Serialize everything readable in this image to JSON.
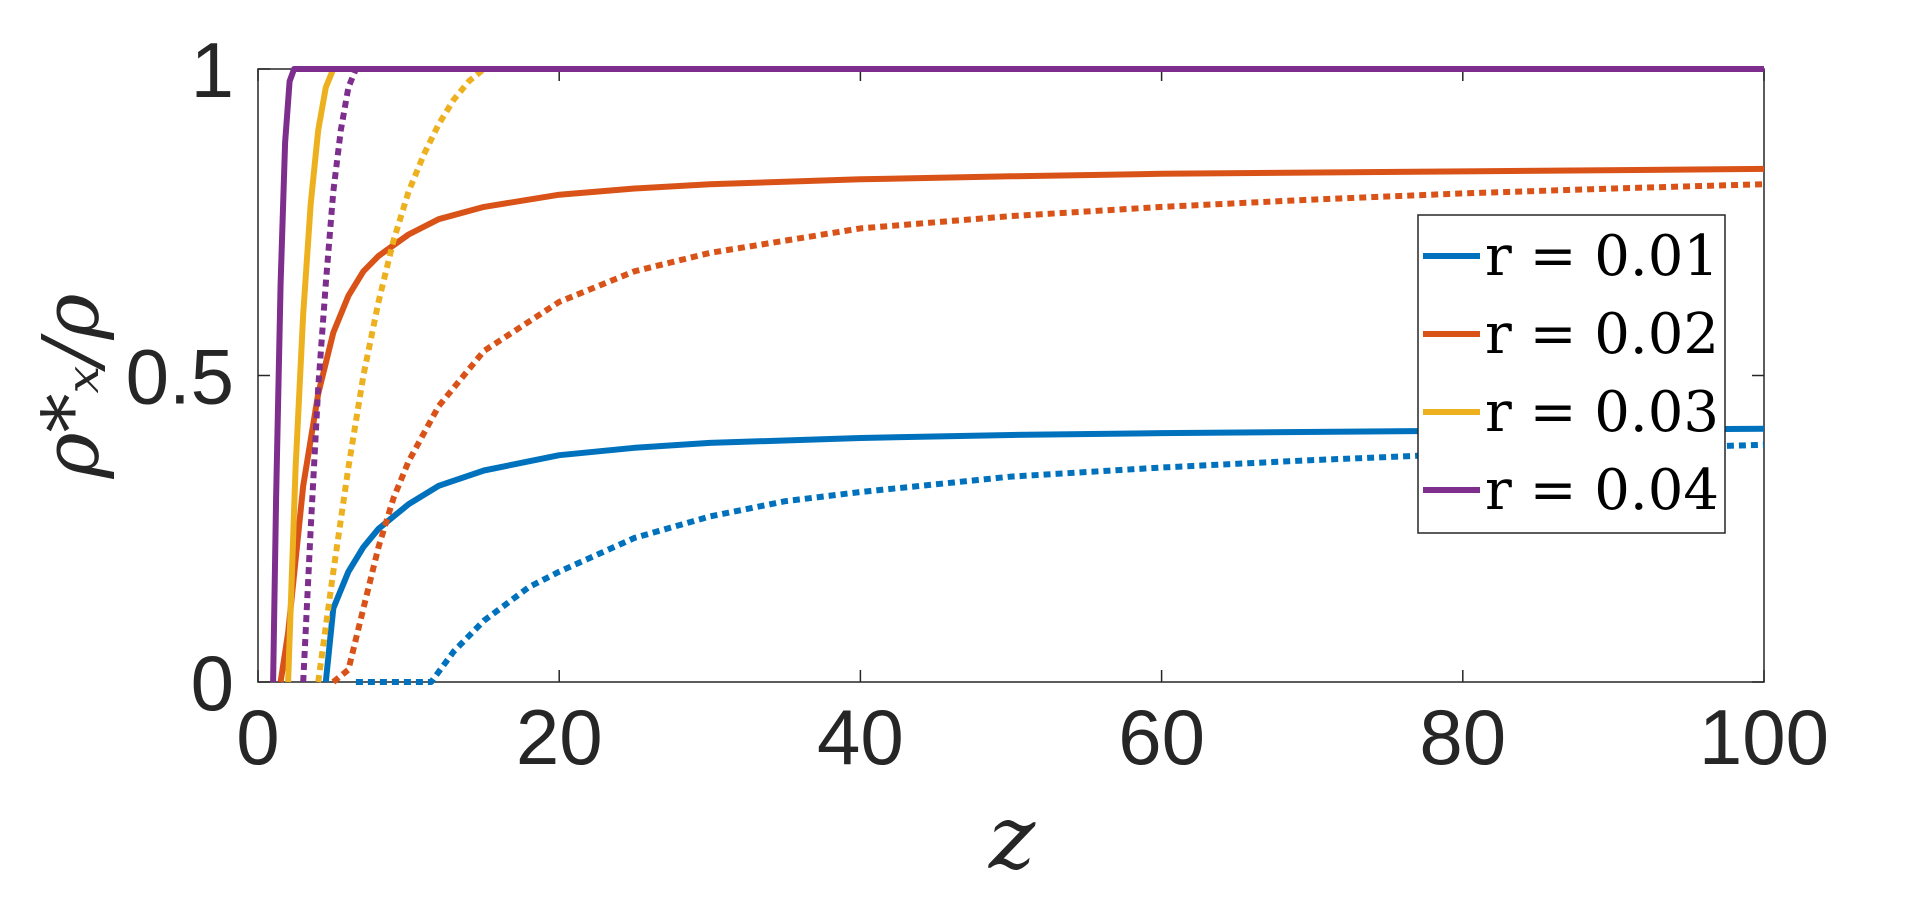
{
  "chart_data": {
    "type": "line",
    "xlabel": "z",
    "ylabel": "ρ*ₓ/ρ",
    "xlim": [
      0,
      100
    ],
    "ylim": [
      0,
      1
    ],
    "xticks": [
      "0",
      "20",
      "40",
      "60",
      "80",
      "100"
    ],
    "yticks": [
      "0",
      "0.5",
      "1"
    ],
    "grid": false,
    "legend_position": "right",
    "series": [
      {
        "name": "r = 0.01",
        "style": "solid",
        "color": "#0072BD",
        "x": [
          4.5,
          5,
          6,
          7,
          8,
          10,
          12,
          15,
          20,
          25,
          30,
          40,
          50,
          60,
          80,
          100
        ],
        "y": [
          0,
          0.12,
          0.18,
          0.22,
          0.25,
          0.29,
          0.32,
          0.345,
          0.37,
          0.382,
          0.39,
          0.398,
          0.403,
          0.406,
          0.41,
          0.413
        ]
      },
      {
        "name": "r = 0.01 (dotted)",
        "style": "dotted",
        "color": "#0072BD",
        "x": [
          6.5,
          8,
          10,
          11.5,
          13,
          15,
          18,
          20,
          25,
          30,
          35,
          40,
          50,
          60,
          70,
          80,
          90,
          100
        ],
        "y": [
          0,
          0,
          0,
          0,
          0.05,
          0.1,
          0.155,
          0.18,
          0.235,
          0.27,
          0.295,
          0.31,
          0.335,
          0.35,
          0.362,
          0.372,
          0.38,
          0.387
        ]
      },
      {
        "name": "r = 0.02",
        "style": "solid",
        "color": "#D95319",
        "x": [
          1.5,
          2,
          3,
          4,
          5,
          6,
          7,
          8,
          10,
          12,
          15,
          20,
          25,
          30,
          40,
          50,
          60,
          80,
          100
        ],
        "y": [
          0,
          0.08,
          0.32,
          0.47,
          0.57,
          0.63,
          0.67,
          0.695,
          0.73,
          0.755,
          0.775,
          0.795,
          0.805,
          0.812,
          0.82,
          0.825,
          0.829,
          0.833,
          0.837
        ]
      },
      {
        "name": "r = 0.02 (dotted)",
        "style": "dotted",
        "color": "#D95319",
        "x": [
          5,
          6,
          7,
          8,
          9,
          10,
          12,
          15,
          20,
          25,
          30,
          40,
          50,
          60,
          70,
          80,
          90,
          100
        ],
        "y": [
          0,
          0.02,
          0.12,
          0.22,
          0.3,
          0.36,
          0.45,
          0.54,
          0.62,
          0.67,
          0.7,
          0.74,
          0.76,
          0.775,
          0.787,
          0.797,
          0.805,
          0.812
        ]
      },
      {
        "name": "r = 0.03",
        "style": "solid",
        "color": "#EDB120",
        "x": [
          2,
          2.5,
          3,
          3.5,
          4,
          4.5,
          5
        ],
        "y": [
          0,
          0.35,
          0.6,
          0.78,
          0.9,
          0.97,
          1
        ]
      },
      {
        "name": "r = 0.03 (dotted)",
        "style": "dotted",
        "color": "#EDB120",
        "x": [
          4,
          5,
          6,
          7,
          8,
          9,
          10,
          11,
          12,
          13,
          14,
          15
        ],
        "y": [
          0,
          0.18,
          0.35,
          0.5,
          0.62,
          0.72,
          0.8,
          0.86,
          0.91,
          0.95,
          0.98,
          1
        ]
      },
      {
        "name": "r = 0.04",
        "style": "solid",
        "color": "#7E2F8E",
        "x": [
          1,
          1.2,
          1.5,
          1.8,
          2.1,
          2.4
        ],
        "y": [
          0,
          0.3,
          0.65,
          0.88,
          0.98,
          1
        ]
      },
      {
        "name": "r = 0.04 (dotted)",
        "style": "dotted",
        "color": "#7E2F8E",
        "x": [
          3,
          3.5,
          4,
          4.5,
          5,
          5.5,
          6,
          6.5
        ],
        "y": [
          0,
          0.25,
          0.48,
          0.65,
          0.8,
          0.9,
          0.97,
          1
        ]
      }
    ],
    "legend": [
      {
        "label": "r = 0.01",
        "color": "#0072BD"
      },
      {
        "label": "r = 0.02",
        "color": "#D95319"
      },
      {
        "label": "r = 0.03",
        "color": "#EDB120"
      },
      {
        "label": "r = 0.04",
        "color": "#7E2F8E"
      }
    ]
  }
}
